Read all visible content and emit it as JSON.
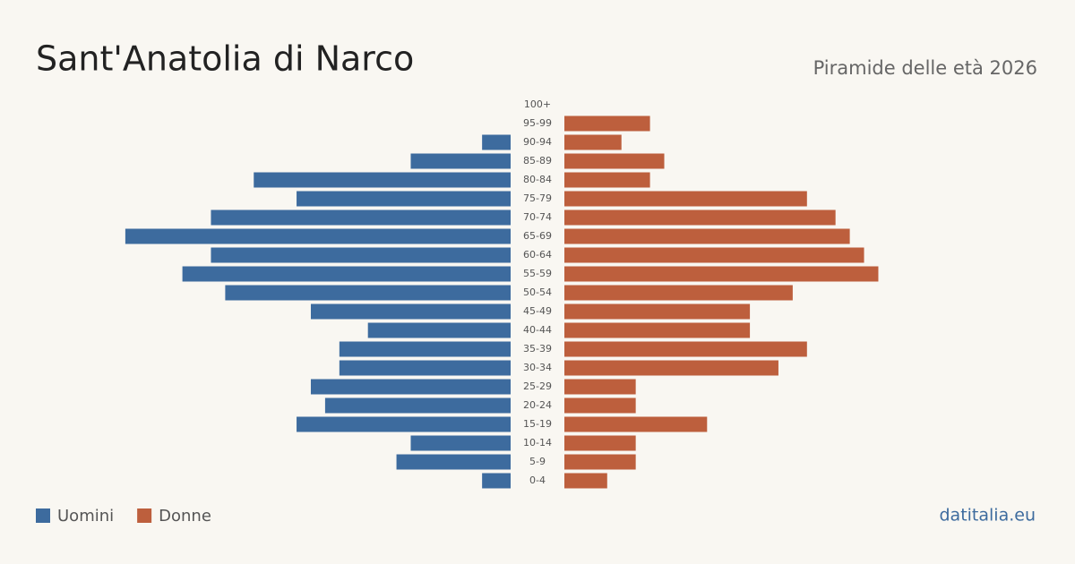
{
  "chart_data": {
    "type": "pyramid",
    "title": "Sant'Anatolia di Narco",
    "subtitle": "Piramide delle età 2026",
    "footer": "datitalia.eu",
    "categories": [
      "100+",
      "95-99",
      "90-94",
      "85-89",
      "80-84",
      "75-79",
      "70-74",
      "65-69",
      "60-64",
      "55-59",
      "50-54",
      "45-49",
      "40-44",
      "35-39",
      "30-34",
      "25-29",
      "20-24",
      "15-19",
      "10-14",
      "5-9",
      "0-4"
    ],
    "series": [
      {
        "name": "Uomini",
        "color": "#3d6b9e",
        "values": [
          0,
          0,
          2,
          7,
          18,
          15,
          21,
          27,
          21,
          23,
          20,
          14,
          10,
          12,
          12,
          14,
          13,
          15,
          7,
          8,
          2
        ]
      },
      {
        "name": "Donne",
        "color": "#bd5f3d",
        "values": [
          0,
          6,
          4,
          7,
          6,
          17,
          19,
          20,
          21,
          22,
          16,
          13,
          13,
          17,
          15,
          5,
          5,
          10,
          5,
          5,
          3
        ]
      }
    ]
  }
}
